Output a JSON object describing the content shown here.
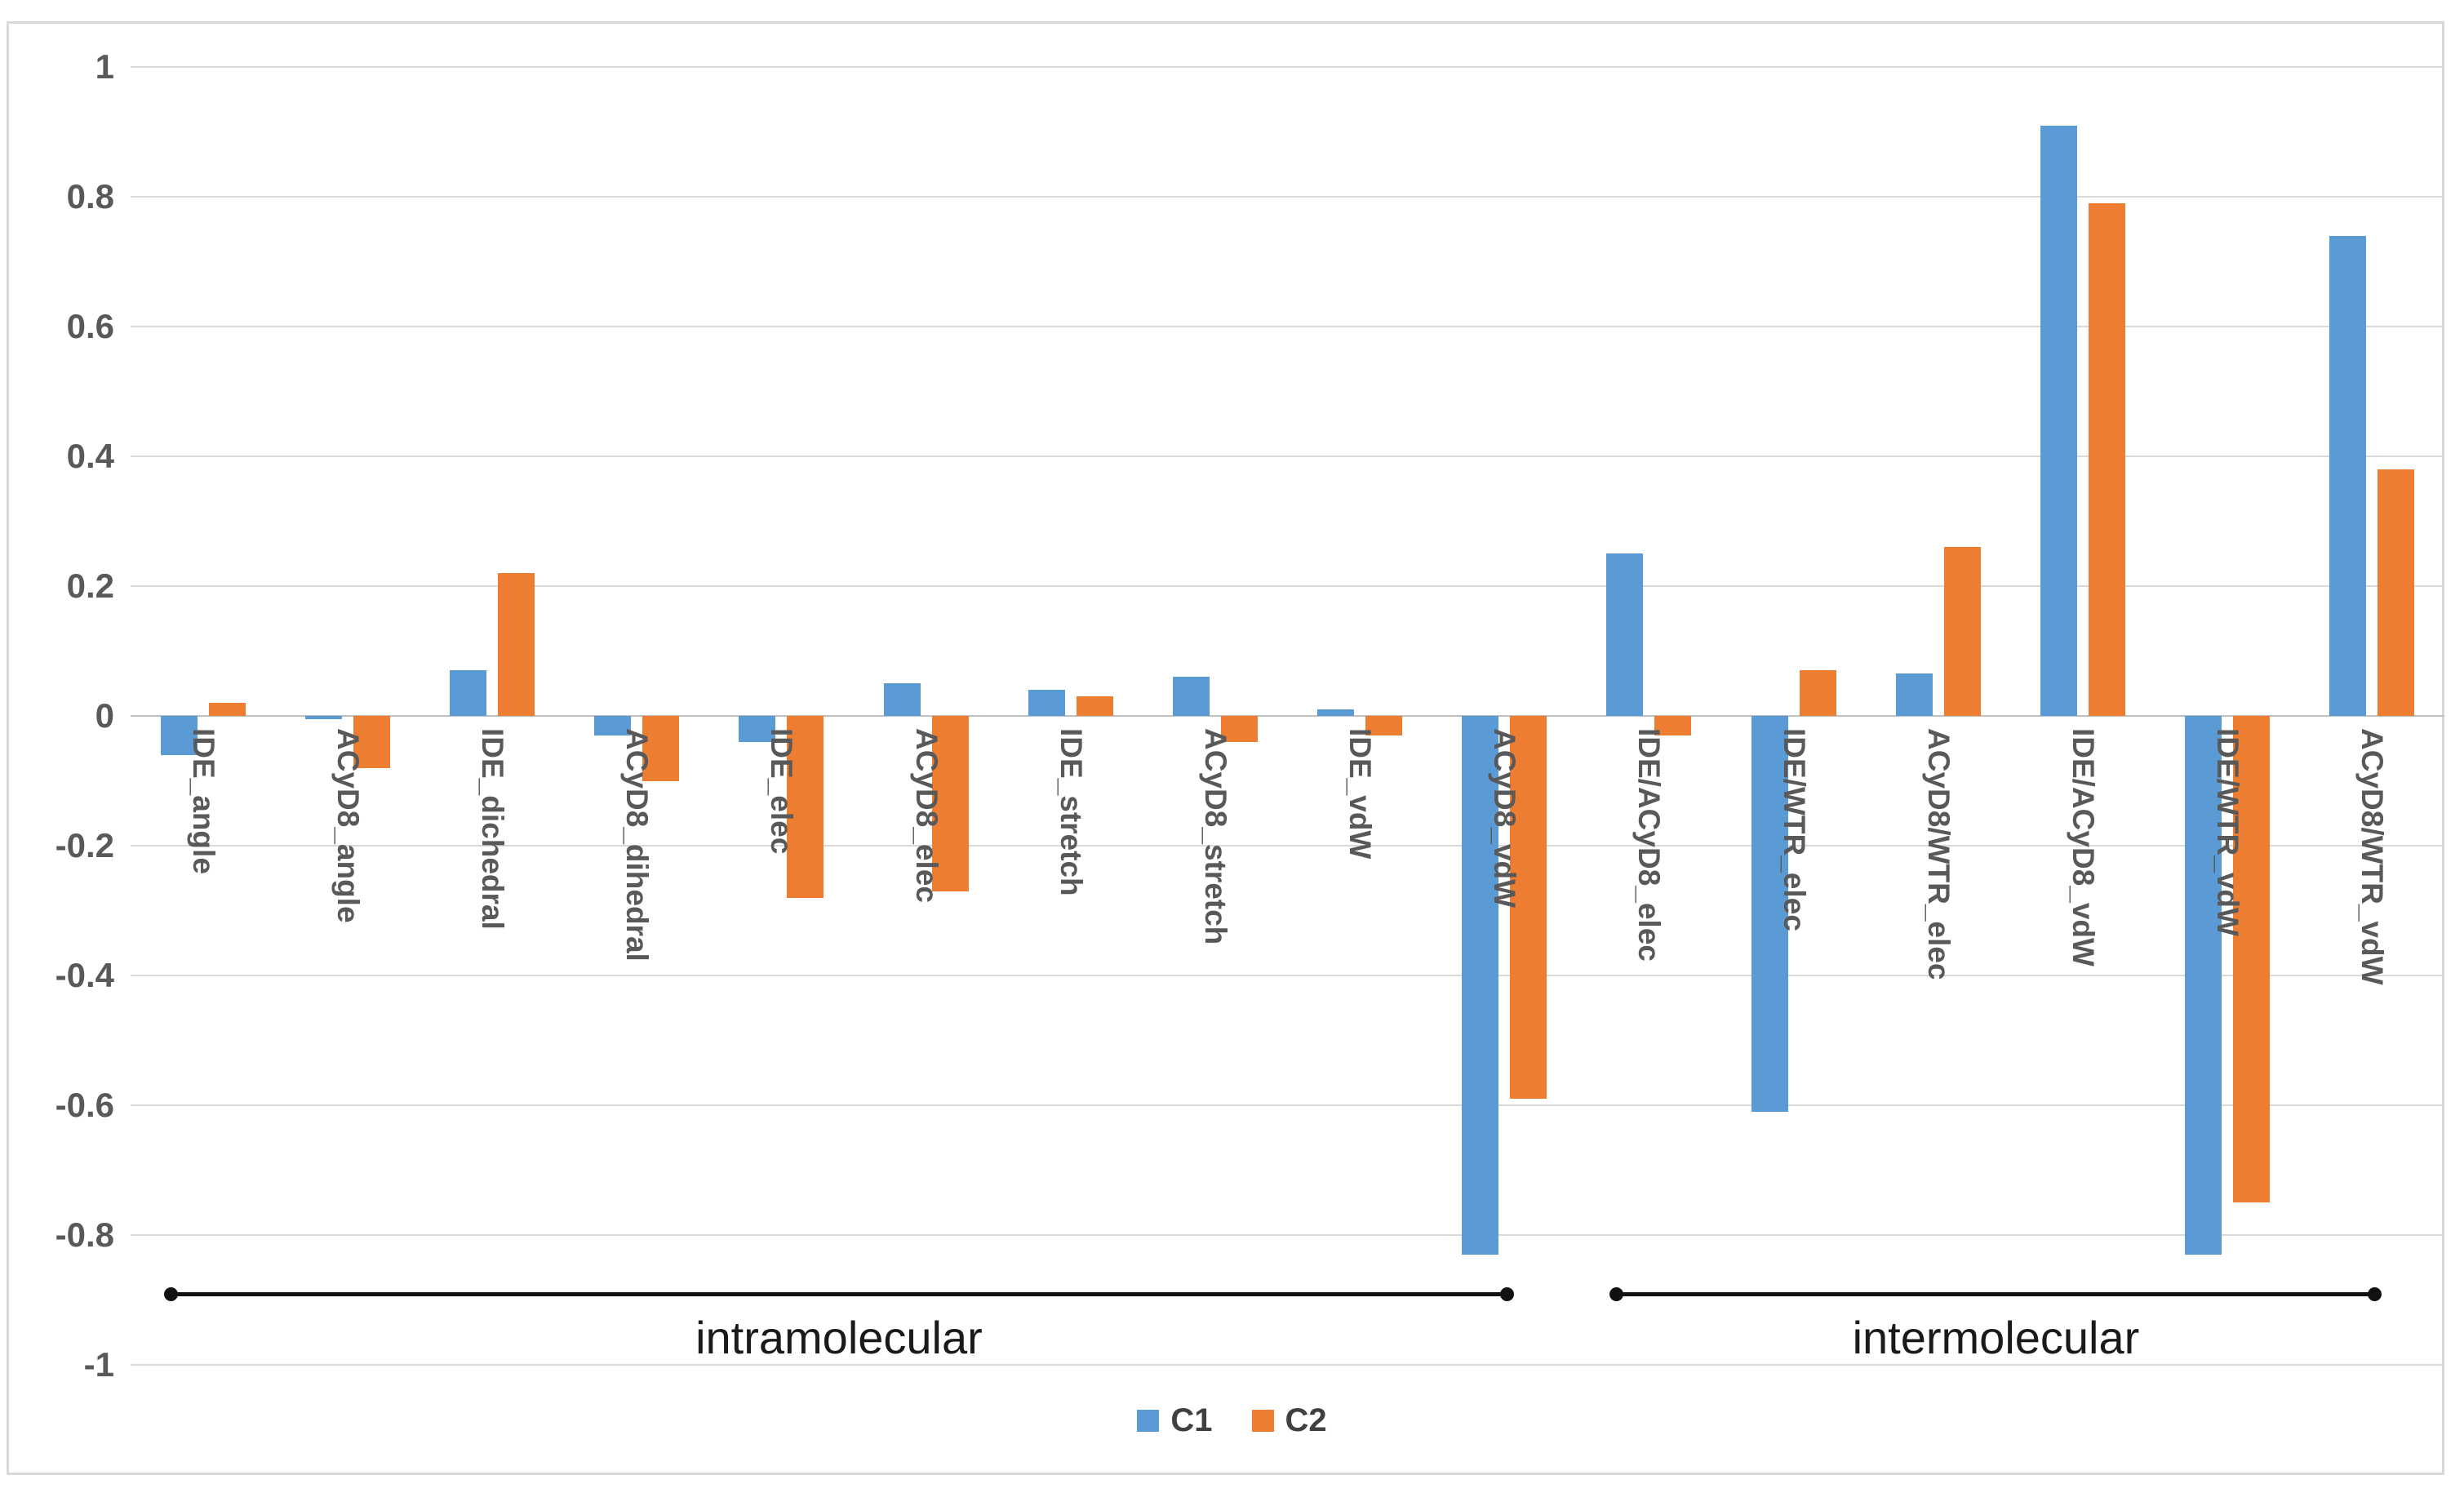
{
  "figure": {
    "background": "#ffffff",
    "border_color": "#d9d9d9",
    "gridline_color": "#d9d9d9",
    "zero_line_color": "#bfbfbf",
    "axis_text_color": "#595959",
    "bracket_color": "#111111"
  },
  "chart_data": {
    "type": "bar",
    "title": "",
    "xlabel": "",
    "ylabel": "",
    "ylim": [
      -1,
      1
    ],
    "ytick_interval": 0.2,
    "ytick_labels": [
      "1",
      "0.8",
      "0.6",
      "0.4",
      "0.2",
      "0",
      "-0.2",
      "-0.4",
      "-0.6",
      "-0.8",
      "-1"
    ],
    "grid": true,
    "legend_position": "bottom-center",
    "categories": [
      "IDE_angle",
      "ACyD8_angle",
      "IDE_dichedral",
      "ACyD8_dihedral",
      "IDE_elec",
      "ACyD8_elec",
      "IDE_stretch",
      "ACyD8_stretch",
      "IDE_vdW",
      "ACyD8_vdW",
      "IDE/ACyD8_elec",
      "IDE/WTR_elec",
      "ACyD8/WTR_elec",
      "IDE/ACyD8_vdW",
      "IDE/WTR_vdW",
      "ACyD8/WTR_vdW"
    ],
    "series": [
      {
        "name": "C1",
        "color": "#5B9BD5",
        "values": [
          -0.06,
          -0.005,
          0.07,
          -0.03,
          -0.04,
          0.05,
          0.04,
          0.06,
          0.01,
          -0.83,
          0.25,
          -0.61,
          0.065,
          0.91,
          -0.83,
          0.74
        ]
      },
      {
        "name": "C2",
        "color": "#ED7D31",
        "values": [
          0.02,
          -0.08,
          0.22,
          -0.1,
          -0.28,
          -0.27,
          0.03,
          -0.04,
          -0.03,
          -0.59,
          -0.03,
          0.07,
          0.26,
          0.79,
          -0.75,
          0.38
        ]
      }
    ],
    "groups": [
      {
        "label": "intramolecular",
        "from_category": 0,
        "to_category": 9
      },
      {
        "label": "intermolecular",
        "from_category": 10,
        "to_category": 15
      }
    ]
  },
  "legend": {
    "items": [
      {
        "label": "C1",
        "color": "#5B9BD5"
      },
      {
        "label": "C2",
        "color": "#ED7D31"
      }
    ]
  }
}
